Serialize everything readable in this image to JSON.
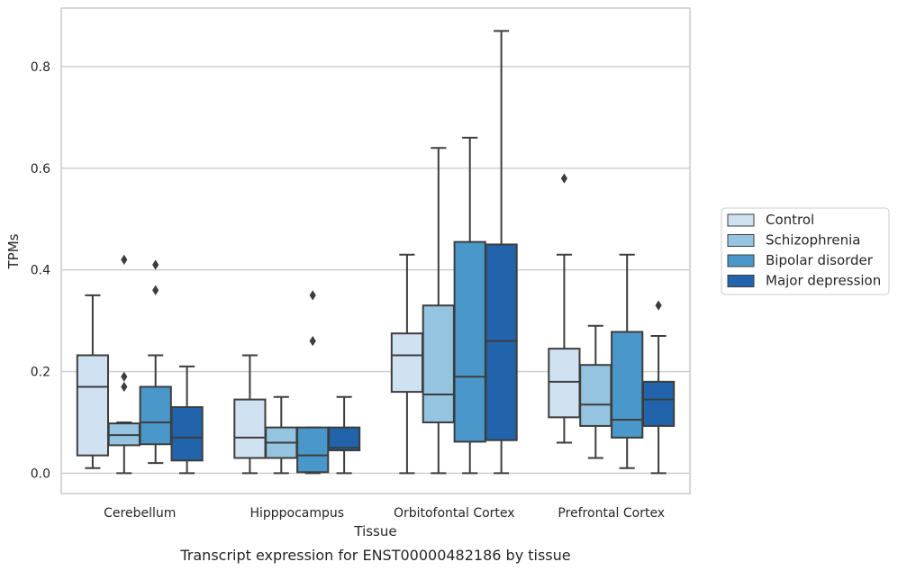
{
  "chart_data": {
    "type": "boxplot",
    "caption": "Transcript expression for ENST00000482186 by tissue",
    "xlabel": "Tissue",
    "ylabel": "TPMs",
    "ylim": [
      -0.04,
      0.915
    ],
    "yticks": [
      0.0,
      0.2,
      0.4,
      0.6,
      0.8
    ],
    "ytick_labels": [
      "0.0",
      "0.2",
      "0.4",
      "0.6",
      "0.8"
    ],
    "grid": "horizontal",
    "legend_position": "outside-right",
    "categories": [
      "Cerebellum",
      "Hipppocampus",
      "Orbitofontal Cortex",
      "Prefrontal Cortex"
    ],
    "series": [
      {
        "name": "Control",
        "color": "#d0e1f2",
        "boxes": [
          {
            "whislo": 0.01,
            "q1": 0.035,
            "med": 0.17,
            "q3": 0.232,
            "whishi": 0.35,
            "fliers": []
          },
          {
            "whislo": 0.0,
            "q1": 0.03,
            "med": 0.07,
            "q3": 0.145,
            "whishi": 0.232,
            "fliers": []
          },
          {
            "whislo": 0.0,
            "q1": 0.16,
            "med": 0.232,
            "q3": 0.275,
            "whishi": 0.43,
            "fliers": []
          },
          {
            "whislo": 0.06,
            "q1": 0.11,
            "med": 0.18,
            "q3": 0.245,
            "whishi": 0.43,
            "fliers": [
              0.58
            ]
          }
        ]
      },
      {
        "name": "Schizophrenia",
        "color": "#94c4df",
        "boxes": [
          {
            "whislo": 0.0,
            "q1": 0.055,
            "med": 0.075,
            "q3": 0.098,
            "whishi": 0.1,
            "fliers": [
              0.17,
              0.19,
              0.42
            ]
          },
          {
            "whislo": 0.0,
            "q1": 0.03,
            "med": 0.06,
            "q3": 0.09,
            "whishi": 0.15,
            "fliers": []
          },
          {
            "whislo": 0.0,
            "q1": 0.1,
            "med": 0.155,
            "q3": 0.33,
            "whishi": 0.64,
            "fliers": []
          },
          {
            "whislo": 0.03,
            "q1": 0.093,
            "med": 0.135,
            "q3": 0.213,
            "whishi": 0.29,
            "fliers": []
          }
        ]
      },
      {
        "name": "Bipolar disorder",
        "color": "#4a98c9",
        "boxes": [
          {
            "whislo": 0.02,
            "q1": 0.057,
            "med": 0.1,
            "q3": 0.17,
            "whishi": 0.232,
            "fliers": [
              0.36,
              0.41
            ]
          },
          {
            "whislo": 0.0,
            "q1": 0.002,
            "med": 0.035,
            "q3": 0.09,
            "whishi": 0.09,
            "fliers": [
              0.26,
              0.35
            ]
          },
          {
            "whislo": 0.0,
            "q1": 0.062,
            "med": 0.19,
            "q3": 0.455,
            "whishi": 0.66,
            "fliers": []
          },
          {
            "whislo": 0.01,
            "q1": 0.07,
            "med": 0.105,
            "q3": 0.278,
            "whishi": 0.43,
            "fliers": []
          }
        ]
      },
      {
        "name": "Major depression",
        "color": "#2164ab",
        "boxes": [
          {
            "whislo": 0.0,
            "q1": 0.025,
            "med": 0.07,
            "q3": 0.13,
            "whishi": 0.21,
            "fliers": []
          },
          {
            "whislo": 0.0,
            "q1": 0.045,
            "med": 0.05,
            "q3": 0.09,
            "whishi": 0.15,
            "fliers": []
          },
          {
            "whislo": 0.0,
            "q1": 0.065,
            "med": 0.26,
            "q3": 0.45,
            "whishi": 0.87,
            "fliers": []
          },
          {
            "whislo": 0.0,
            "q1": 0.093,
            "med": 0.145,
            "q3": 0.18,
            "whishi": 0.27,
            "fliers": [
              0.33
            ]
          }
        ]
      }
    ]
  }
}
